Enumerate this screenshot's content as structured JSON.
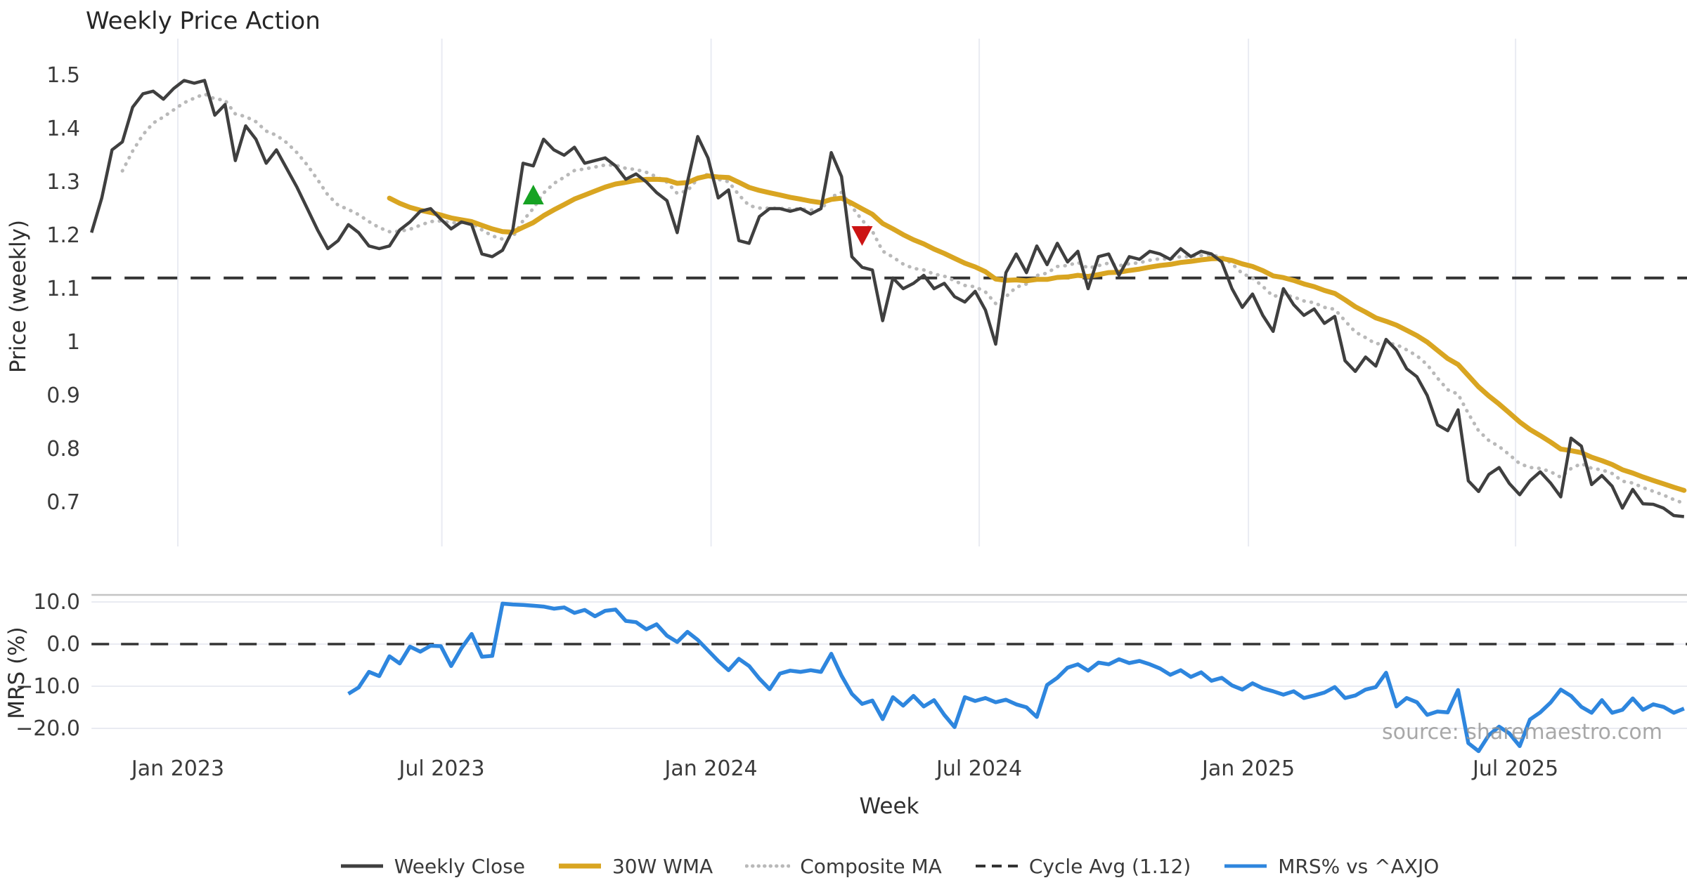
{
  "title": "Weekly Price Action",
  "watermark": "source: sharemaestro.com",
  "accent_colors": {
    "weekly_close": "#3f3f3f",
    "wma30": "#d9a521",
    "composite_ma": "#b9b9b9",
    "cycle_avg": "#333333",
    "mrs": "#2e86de",
    "buy_marker": "#16a223",
    "sell_marker": "#cc1414",
    "grid": "#e9ebf2",
    "watermark_gray": "#969696"
  },
  "chart_data": [
    {
      "type": "line",
      "panel": "price",
      "title": "Weekly Price Action",
      "xlabel": "Week",
      "ylabel": "Price (weekly)",
      "ylim": [
        0.63,
        1.57
      ],
      "yticks": [
        1.5,
        1.4,
        1.3,
        1.2,
        1.1,
        1,
        0.9,
        0.8,
        0.7
      ],
      "ytick_labels": [
        "1.5",
        "1.4",
        "1.3",
        "1.2",
        "1.1",
        "1",
        "0.9",
        "0.8",
        "0.7"
      ],
      "x_unit": "weeks_from_start_nov_2022",
      "total_weeks": 156,
      "xtick_weeks": [
        8.4,
        34.1,
        60.3,
        86.4,
        112.6,
        138.6
      ],
      "xtick_labels": [
        "Jan 2023",
        "Jul 2023",
        "Jan 2024",
        "Jul 2024",
        "Jan 2025",
        "Jul 2025"
      ],
      "grid": "vertical-only",
      "series": [
        {
          "name": "Weekly Close",
          "color": "#3f3f3f",
          "style": "solid",
          "start_week": 0,
          "values": [
            1.205,
            1.27,
            1.36,
            1.375,
            1.44,
            1.465,
            1.47,
            1.455,
            1.475,
            1.49,
            1.485,
            1.49,
            1.425,
            1.445,
            1.34,
            1.405,
            1.38,
            1.335,
            1.36,
            1.325,
            1.29,
            1.25,
            1.21,
            1.175,
            1.19,
            1.22,
            1.205,
            1.18,
            1.175,
            1.18,
            1.21,
            1.225,
            1.245,
            1.25,
            1.23,
            1.212,
            1.225,
            1.22,
            1.165,
            1.16,
            1.172,
            1.21,
            1.335,
            1.33,
            1.38,
            1.36,
            1.35,
            1.365,
            1.335,
            1.34,
            1.345,
            1.33,
            1.305,
            1.315,
            1.3,
            1.28,
            1.265,
            1.205,
            1.3,
            1.385,
            1.345,
            1.27,
            1.285,
            1.19,
            1.185,
            1.235,
            1.25,
            1.25,
            1.245,
            1.25,
            1.24,
            1.25,
            1.355,
            1.31,
            1.16,
            1.14,
            1.135,
            1.04,
            1.12,
            1.1,
            1.11,
            1.125,
            1.1,
            1.11,
            1.085,
            1.075,
            1.095,
            1.06,
            0.996,
            1.13,
            1.165,
            1.13,
            1.18,
            1.145,
            1.185,
            1.15,
            1.17,
            1.1,
            1.16,
            1.165,
            1.125,
            1.16,
            1.155,
            1.17,
            1.165,
            1.155,
            1.175,
            1.16,
            1.17,
            1.165,
            1.15,
            1.1,
            1.065,
            1.09,
            1.05,
            1.02,
            1.1,
            1.07,
            1.05,
            1.062,
            1.035,
            1.048,
            0.965,
            0.945,
            0.972,
            0.955,
            1.005,
            0.985,
            0.95,
            0.935,
            0.9,
            0.845,
            0.834,
            0.873,
            0.74,
            0.72,
            0.752,
            0.765,
            0.735,
            0.714,
            0.74,
            0.757,
            0.736,
            0.71,
            0.82,
            0.805,
            0.733,
            0.75,
            0.73,
            0.689,
            0.724,
            0.697,
            0.696,
            0.689,
            0.675,
            0.673
          ]
        },
        {
          "name": "30W WMA",
          "color": "#d9a521",
          "style": "solid",
          "start_week": 29,
          "derived_from": "Weekly Close",
          "derivation": "weighted_ma",
          "window": 24
        },
        {
          "name": "Composite MA",
          "color": "#b9b9b9",
          "style": "dotted",
          "start_week": 3,
          "derived_from": "Weekly Close",
          "derivation": "ema",
          "span": 8
        },
        {
          "name": "Cycle Avg (1.12)",
          "color": "#333333",
          "style": "dashed",
          "value": 1.12
        }
      ],
      "markers": [
        {
          "name": "buy-signal",
          "shape": "triangle-up",
          "color": "#16a223",
          "week": 43,
          "value": 1.275
        },
        {
          "name": "sell-signal",
          "shape": "triangle-down",
          "color": "#cc1414",
          "week": 75,
          "value": 1.2
        }
      ]
    },
    {
      "type": "line",
      "panel": "mrs",
      "ylabel": "MRS (%)",
      "shared_x_with_panel": "price",
      "ylim": [
        -26,
        12.5
      ],
      "yticks": [
        10,
        0,
        -10,
        -20
      ],
      "ytick_labels": [
        "10.0",
        "0.0",
        "−10.0",
        "−20.0"
      ],
      "grid": "horizontal-only",
      "zero_line": {
        "value": 0.0,
        "style": "dashed",
        "color": "#333333"
      },
      "series": [
        {
          "name": "MRS% vs ^AXJO",
          "color": "#2e86de",
          "style": "solid",
          "start_week": 25,
          "values": [
            -11.8,
            -10.3,
            -6.6,
            -7.6,
            -2.9,
            -4.6,
            -0.6,
            -1.8,
            -0.4,
            -0.5,
            -5.2,
            -1.0,
            2.4,
            -3.0,
            -2.8,
            9.6,
            9.4,
            9.3,
            9.1,
            8.9,
            8.4,
            8.7,
            7.4,
            8.1,
            6.6,
            7.9,
            8.2,
            5.5,
            5.2,
            3.5,
            4.7,
            2.0,
            0.5,
            2.9,
            1.0,
            -1.5,
            -4.0,
            -6.2,
            -3.5,
            -5.2,
            -8.2,
            -10.7,
            -7.0,
            -6.3,
            -6.6,
            -6.2,
            -6.6,
            -2.3,
            -7.5,
            -11.8,
            -14.2,
            -13.4,
            -17.8,
            -12.6,
            -14.6,
            -12.3,
            -14.8,
            -13.3,
            -16.8,
            -19.7,
            -12.6,
            -13.5,
            -12.8,
            -13.8,
            -13.2,
            -14.3,
            -15.0,
            -17.3,
            -9.7,
            -8.0,
            -5.6,
            -4.8,
            -6.3,
            -4.4,
            -4.8,
            -3.6,
            -4.5,
            -4.0,
            -4.8,
            -5.8,
            -7.3,
            -6.2,
            -7.8,
            -6.7,
            -8.7,
            -8.0,
            -9.8,
            -10.8,
            -9.3,
            -10.5,
            -11.2,
            -12.0,
            -11.2,
            -12.8,
            -12.2,
            -11.5,
            -10.2,
            -12.8,
            -12.2,
            -10.8,
            -10.2,
            -6.8,
            -14.8,
            -12.8,
            -13.8,
            -16.8,
            -16.0,
            -16.2,
            -10.9,
            -23.5,
            -25.4,
            -21.6,
            -19.6,
            -21.2,
            -24.2,
            -17.9,
            -16.2,
            -13.9,
            -10.8,
            -12.3,
            -14.9,
            -16.3,
            -13.3,
            -16.3,
            -15.6,
            -12.9,
            -15.6,
            -14.3,
            -14.9,
            -16.3,
            -15.3
          ]
        }
      ]
    }
  ],
  "legend": {
    "items": [
      {
        "slug": "weekly-close",
        "label": "Weekly Close",
        "color": "#3f3f3f",
        "style": "solid"
      },
      {
        "slug": "30w-wma",
        "label": "30W WMA",
        "color": "#d9a521",
        "style": "solid-thick"
      },
      {
        "slug": "composite-ma",
        "label": "Composite MA",
        "color": "#b9b9b9",
        "style": "dotted"
      },
      {
        "slug": "cycle-avg",
        "label": "Cycle Avg (1.12)",
        "color": "#333333",
        "style": "dashed"
      },
      {
        "slug": "mrs-vs-axjo",
        "label": "MRS% vs ^AXJO",
        "color": "#2e86de",
        "style": "solid"
      }
    ]
  }
}
